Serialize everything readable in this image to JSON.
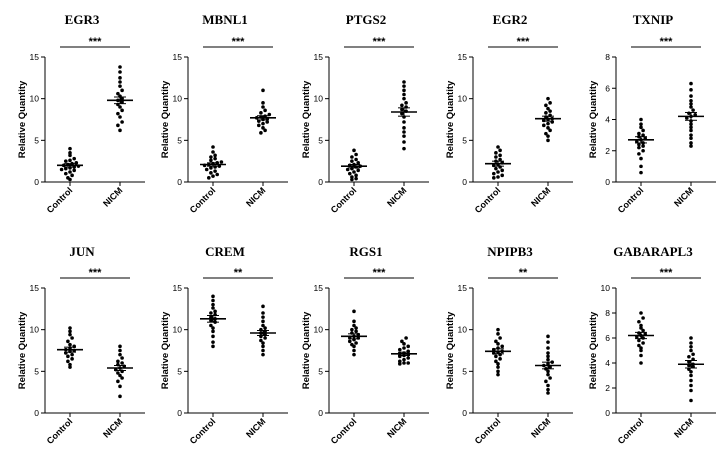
{
  "chart_data": [
    {
      "type": "scatter",
      "title": "EGR3",
      "ylabel": "Relative Quantity",
      "categories": [
        "Control",
        "NICM"
      ],
      "ylim": [
        0,
        15
      ],
      "yticks": [
        0,
        5,
        10,
        15
      ],
      "significance": "***",
      "groups": [
        {
          "name": "Control",
          "mean": 2.0,
          "sem": 0.2,
          "values": [
            4.0,
            3.5,
            3.2,
            2.8,
            2.6,
            2.5,
            2.3,
            2.2,
            2.1,
            2.0,
            1.9,
            1.8,
            1.7,
            1.6,
            1.5,
            1.4,
            1.2,
            1.0,
            0.8,
            0.5,
            0.3
          ]
        },
        {
          "name": "NICM",
          "mean": 9.8,
          "sem": 0.4,
          "values": [
            13.8,
            13.2,
            12.5,
            12.0,
            11.5,
            11.0,
            10.6,
            10.3,
            10.0,
            9.8,
            9.6,
            9.3,
            9.0,
            8.6,
            8.2,
            7.8,
            7.2,
            6.8,
            6.2
          ]
        }
      ]
    },
    {
      "type": "scatter",
      "title": "MBNL1",
      "ylabel": "Relative Quantity",
      "categories": [
        "Control",
        "NICM"
      ],
      "ylim": [
        0,
        15
      ],
      "yticks": [
        0,
        5,
        10,
        15
      ],
      "significance": "***",
      "groups": [
        {
          "name": "Control",
          "mean": 2.1,
          "sem": 0.2,
          "values": [
            4.2,
            3.6,
            3.2,
            3.0,
            2.8,
            2.6,
            2.4,
            2.3,
            2.2,
            2.1,
            2.0,
            1.9,
            1.8,
            1.7,
            1.5,
            1.3,
            1.1,
            0.9,
            0.7,
            0.5
          ]
        },
        {
          "name": "NICM",
          "mean": 7.7,
          "sem": 0.25,
          "values": [
            11.0,
            9.5,
            9.0,
            8.6,
            8.3,
            8.1,
            7.9,
            7.8,
            7.7,
            7.6,
            7.5,
            7.3,
            7.2,
            7.0,
            6.8,
            6.5,
            6.2,
            5.9
          ]
        }
      ]
    },
    {
      "type": "scatter",
      "title": "PTGS2",
      "ylabel": "Relative Quantity",
      "categories": [
        "Control",
        "NICM"
      ],
      "ylim": [
        0,
        15
      ],
      "yticks": [
        0,
        5,
        10,
        15
      ],
      "significance": "***",
      "groups": [
        {
          "name": "Control",
          "mean": 1.9,
          "sem": 0.2,
          "values": [
            3.8,
            3.3,
            3.0,
            2.7,
            2.5,
            2.3,
            2.1,
            2.0,
            1.9,
            1.8,
            1.6,
            1.5,
            1.4,
            1.2,
            1.0,
            0.8,
            0.6,
            0.4,
            0.3
          ]
        },
        {
          "name": "NICM",
          "mean": 8.4,
          "sem": 0.5,
          "values": [
            12.0,
            11.5,
            11.0,
            10.5,
            10.0,
            9.5,
            9.2,
            9.0,
            8.7,
            8.5,
            8.2,
            7.8,
            7.2,
            6.5,
            6.0,
            5.5,
            4.8,
            4.0
          ]
        }
      ]
    },
    {
      "type": "scatter",
      "title": "EGR2",
      "ylabel": "Relative Quantity",
      "categories": [
        "Control",
        "NICM"
      ],
      "ylim": [
        0,
        15
      ],
      "yticks": [
        0,
        5,
        10,
        15
      ],
      "significance": "***",
      "groups": [
        {
          "name": "Control",
          "mean": 2.2,
          "sem": 0.3,
          "values": [
            4.2,
            3.8,
            3.5,
            3.2,
            3.0,
            2.7,
            2.5,
            2.3,
            2.1,
            2.0,
            1.8,
            1.6,
            1.4,
            1.2,
            1.0,
            0.8,
            0.6,
            0.5
          ]
        },
        {
          "name": "NICM",
          "mean": 7.6,
          "sem": 0.3,
          "values": [
            10.0,
            9.5,
            9.2,
            8.8,
            8.5,
            8.3,
            8.0,
            7.8,
            7.6,
            7.5,
            7.4,
            7.2,
            7.0,
            6.8,
            6.5,
            6.2,
            5.8,
            5.5,
            5.0
          ]
        }
      ]
    },
    {
      "type": "scatter",
      "title": "TXNIP",
      "ylabel": "Relative Quantity",
      "categories": [
        "Control",
        "NICM"
      ],
      "ylim": [
        0,
        8
      ],
      "yticks": [
        0,
        2,
        4,
        6,
        8
      ],
      "significance": "***",
      "groups": [
        {
          "name": "Control",
          "mean": 2.7,
          "sem": 0.2,
          "values": [
            4.0,
            3.7,
            3.5,
            3.3,
            3.1,
            3.0,
            2.9,
            2.8,
            2.7,
            2.6,
            2.5,
            2.4,
            2.3,
            2.2,
            2.0,
            1.8,
            1.5,
            1.0,
            0.6
          ]
        },
        {
          "name": "NICM",
          "mean": 4.2,
          "sem": 0.25,
          "values": [
            6.3,
            5.9,
            5.5,
            5.2,
            5.0,
            4.8,
            4.6,
            4.4,
            4.3,
            4.2,
            4.1,
            3.9,
            3.7,
            3.5,
            3.3,
            3.0,
            2.8,
            2.5,
            2.3
          ]
        }
      ]
    },
    {
      "type": "scatter",
      "title": "JUN",
      "ylabel": "Relative Quantity",
      "categories": [
        "Control",
        "NICM"
      ],
      "ylim": [
        0,
        15
      ],
      "yticks": [
        0,
        5,
        10,
        15
      ],
      "significance": "***",
      "groups": [
        {
          "name": "Control",
          "mean": 7.6,
          "sem": 0.3,
          "values": [
            10.2,
            9.8,
            9.4,
            9.0,
            8.6,
            8.2,
            8.0,
            7.8,
            7.6,
            7.5,
            7.4,
            7.2,
            7.0,
            6.8,
            6.5,
            6.2,
            5.8,
            5.5
          ]
        },
        {
          "name": "NICM",
          "mean": 5.4,
          "sem": 0.3,
          "values": [
            8.0,
            7.5,
            7.0,
            6.6,
            6.2,
            6.0,
            5.8,
            5.6,
            5.4,
            5.2,
            5.0,
            4.8,
            4.5,
            4.2,
            3.8,
            3.2,
            2.0
          ]
        }
      ]
    },
    {
      "type": "scatter",
      "title": "CREM",
      "ylabel": "Relative Quantity",
      "categories": [
        "Control",
        "NICM"
      ],
      "ylim": [
        0,
        15
      ],
      "yticks": [
        0,
        5,
        10,
        15
      ],
      "significance": "**",
      "groups": [
        {
          "name": "Control",
          "mean": 11.3,
          "sem": 0.4,
          "values": [
            14.0,
            13.5,
            13.0,
            12.6,
            12.2,
            12.0,
            11.8,
            11.5,
            11.3,
            11.1,
            10.9,
            10.5,
            10.2,
            9.8,
            9.2,
            8.5,
            8.0
          ]
        },
        {
          "name": "NICM",
          "mean": 9.6,
          "sem": 0.3,
          "values": [
            12.8,
            12.0,
            11.5,
            11.0,
            10.5,
            10.2,
            10.0,
            9.8,
            9.6,
            9.4,
            9.2,
            9.0,
            8.7,
            8.4,
            8.0,
            7.5,
            7.0
          ]
        }
      ]
    },
    {
      "type": "scatter",
      "title": "RGS1",
      "ylabel": "Relative Quantity",
      "categories": [
        "Control",
        "NICM"
      ],
      "ylim": [
        0,
        15
      ],
      "yticks": [
        0,
        5,
        10,
        15
      ],
      "significance": "***",
      "groups": [
        {
          "name": "Control",
          "mean": 9.2,
          "sem": 0.3,
          "values": [
            12.2,
            11.0,
            10.5,
            10.2,
            10.0,
            9.8,
            9.6,
            9.4,
            9.2,
            9.1,
            9.0,
            8.8,
            8.6,
            8.4,
            8.2,
            8.0,
            7.5,
            7.0
          ]
        },
        {
          "name": "NICM",
          "mean": 7.1,
          "sem": 0.2,
          "values": [
            9.0,
            8.6,
            8.3,
            8.0,
            7.8,
            7.6,
            7.4,
            7.2,
            7.1,
            7.0,
            6.9,
            6.8,
            6.6,
            6.4,
            6.2,
            6.0,
            6.0,
            5.9
          ]
        }
      ]
    },
    {
      "type": "scatter",
      "title": "NPIPB3",
      "ylabel": "Relative Quantity",
      "categories": [
        "Control",
        "NICM"
      ],
      "ylim": [
        0,
        15
      ],
      "yticks": [
        0,
        5,
        10,
        15
      ],
      "significance": "**",
      "groups": [
        {
          "name": "Control",
          "mean": 7.4,
          "sem": 0.3,
          "values": [
            10.0,
            9.5,
            9.0,
            8.6,
            8.3,
            8.0,
            7.8,
            7.6,
            7.4,
            7.3,
            7.2,
            7.0,
            6.8,
            6.5,
            6.2,
            5.9,
            5.5,
            5.0,
            4.6
          ]
        },
        {
          "name": "NICM",
          "mean": 5.7,
          "sem": 0.4,
          "values": [
            9.2,
            8.5,
            7.8,
            7.2,
            6.8,
            6.4,
            6.1,
            5.9,
            5.7,
            5.5,
            5.3,
            5.0,
            4.6,
            4.2,
            3.8,
            3.3,
            2.8,
            2.4
          ]
        }
      ]
    },
    {
      "type": "scatter",
      "title": "GABARAPL3",
      "ylabel": "Relative Quantity",
      "categories": [
        "Control",
        "NICM"
      ],
      "ylim": [
        0,
        10
      ],
      "yticks": [
        0,
        2,
        4,
        6,
        8,
        10
      ],
      "significance": "***",
      "groups": [
        {
          "name": "Control",
          "mean": 6.2,
          "sem": 0.25,
          "values": [
            8.0,
            7.6,
            7.3,
            7.0,
            6.8,
            6.6,
            6.4,
            6.3,
            6.2,
            6.1,
            6.0,
            5.8,
            5.6,
            5.4,
            5.2,
            5.0,
            4.6,
            4.0
          ]
        },
        {
          "name": "NICM",
          "mean": 3.9,
          "sem": 0.3,
          "values": [
            6.0,
            5.6,
            5.3,
            5.0,
            4.7,
            4.5,
            4.3,
            4.1,
            3.9,
            3.8,
            3.7,
            3.5,
            3.3,
            3.0,
            2.6,
            2.2,
            1.8,
            1.0
          ]
        }
      ]
    }
  ]
}
